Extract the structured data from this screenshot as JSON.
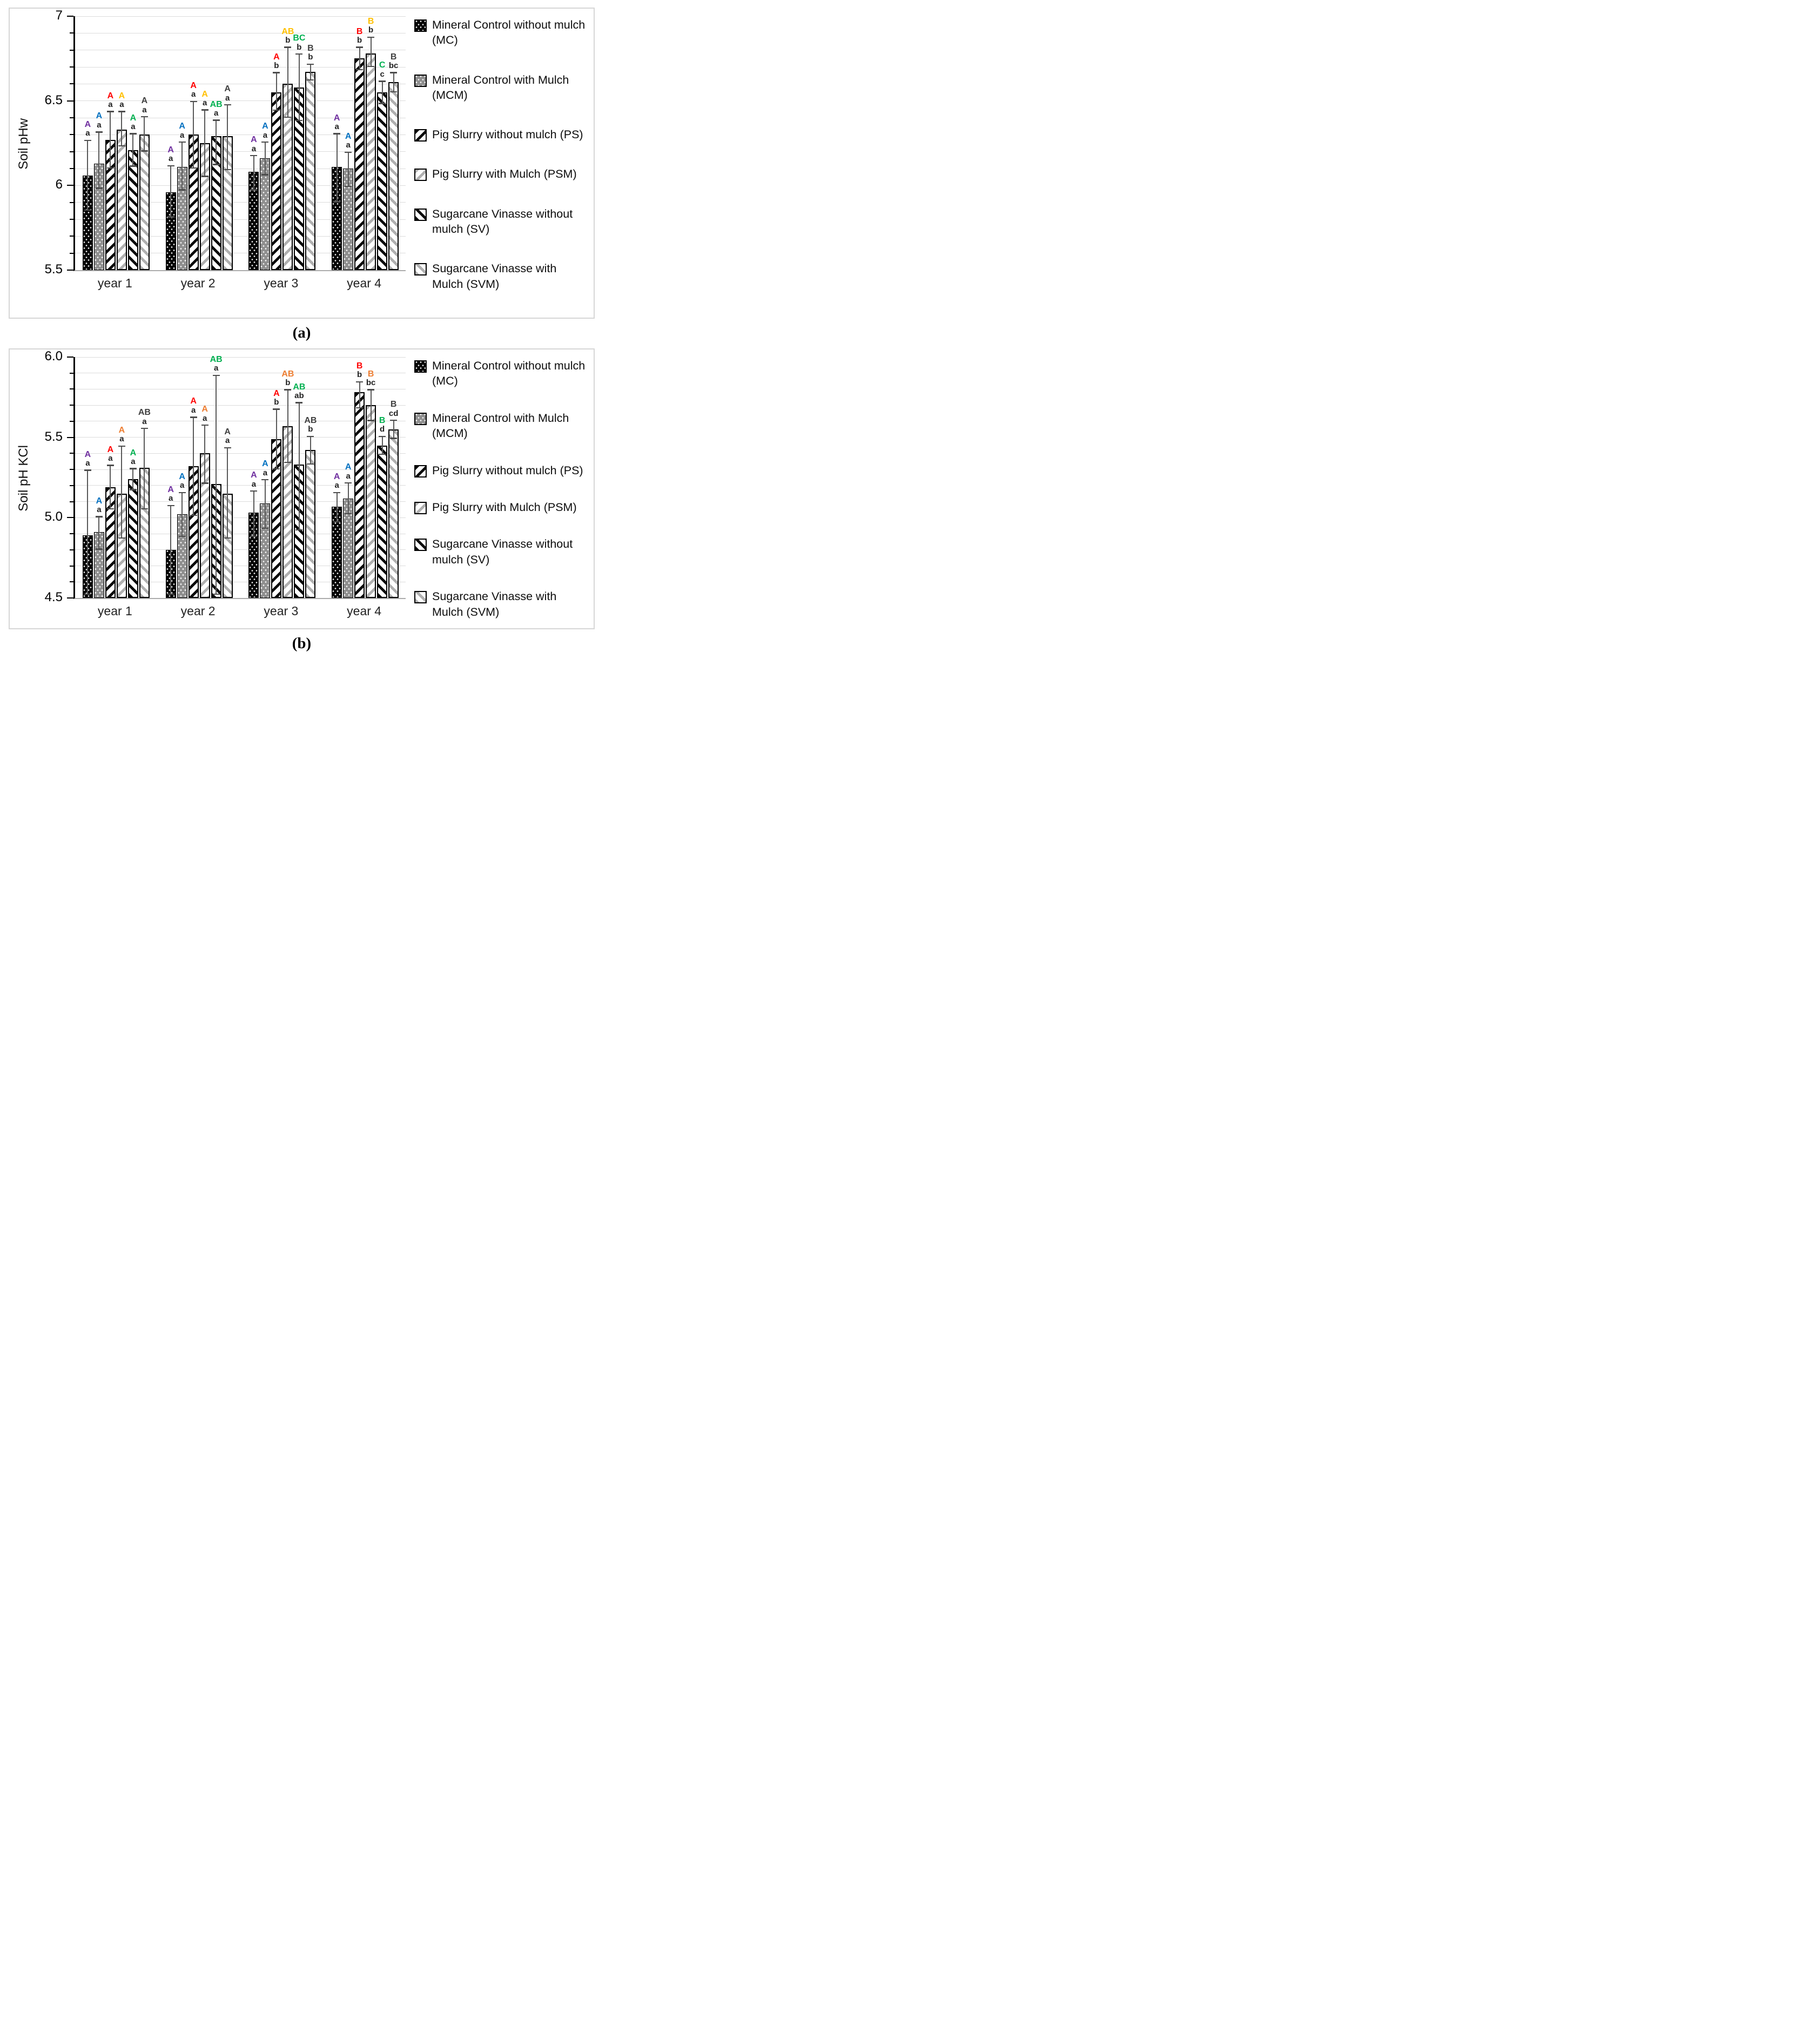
{
  "colors": {
    "grid": "#dcdcdc",
    "axis": "#000000",
    "error_bar": "#595959",
    "purple": "#7030A0",
    "blue": "#0070C0",
    "red": "#FF0000",
    "yellow": "#FFC000",
    "orange": "#ED7D31",
    "green": "#00B050",
    "black_letter": "#404040"
  },
  "legend": {
    "items": [
      {
        "pattern": "pat-mc",
        "icon": "dotted-black-swatch-icon",
        "label": "Mineral Control without mulch (MC)"
      },
      {
        "pattern": "pat-mcm",
        "icon": "dotted-gray-swatch-icon",
        "label": "Mineral Control with Mulch (MCM)"
      },
      {
        "pattern": "pat-ps",
        "icon": "diagonal-up-black-swatch-icon",
        "label": "Pig Slurry without mulch (PS)"
      },
      {
        "pattern": "pat-psm",
        "icon": "diagonal-up-gray-swatch-icon",
        "label": "Pig Slurry with Mulch (PSM)"
      },
      {
        "pattern": "pat-sv",
        "icon": "diagonal-down-black-swatch-icon",
        "label": "Sugarcane Vinasse without mulch (SV)"
      },
      {
        "pattern": "pat-svm",
        "icon": "diagonal-down-gray-swatch-icon",
        "label": "Sugarcane Vinasse with Mulch (SVM)"
      }
    ]
  },
  "chart_data": [
    {
      "id": "a",
      "type": "bar",
      "caption": "(a)",
      "ylabel": "Soil pHw",
      "ylim": [
        5.5,
        7.0
      ],
      "grid_step": 0.1,
      "legend_position": "right",
      "yticks": [
        {
          "v": 7,
          "label": "7"
        },
        {
          "v": 6.5,
          "label": "6.5"
        },
        {
          "v": 6,
          "label": "6"
        },
        {
          "v": 5.5,
          "label": "5.5"
        }
      ],
      "categories": [
        "year 1",
        "year 2",
        "year 3",
        "year 4"
      ],
      "series": [
        {
          "key": "MC",
          "name": "Mineral Control without mulch (MC)",
          "pattern": "pat-mc",
          "thick": false,
          "letter_color": "#7030A0",
          "values": [
            6.06,
            5.96,
            6.08,
            6.11
          ],
          "err_lo": [
            5.85,
            5.81,
            5.97,
            5.9
          ],
          "err_hi": [
            6.27,
            6.12,
            6.18,
            6.31
          ],
          "upper": [
            "A",
            "A",
            "A",
            "A"
          ],
          "lower": [
            "a",
            "a",
            "a",
            "a"
          ]
        },
        {
          "key": "MCM",
          "name": "Mineral Control with Mulch (MCM)",
          "pattern": "pat-mcm",
          "thick": false,
          "letter_color": "#0070C0",
          "values": [
            6.13,
            6.11,
            6.16,
            6.1
          ],
          "err_lo": [
            5.98,
            5.97,
            6.06,
            5.99
          ],
          "err_hi": [
            6.32,
            6.26,
            6.26,
            6.2
          ],
          "upper": [
            "A",
            "A",
            "A",
            "A"
          ],
          "lower": [
            "a",
            "a",
            "a",
            "a"
          ]
        },
        {
          "key": "PS",
          "name": "Pig Slurry without mulch (PS)",
          "pattern": "pat-ps",
          "thick": true,
          "letter_color": "#FF0000",
          "values": [
            6.27,
            6.3,
            6.55,
            6.75
          ],
          "err_lo": [
            6.1,
            6.1,
            6.44,
            6.68
          ],
          "err_hi": [
            6.44,
            6.5,
            6.67,
            6.82
          ],
          "upper": [
            "A",
            "A",
            "A",
            "B"
          ],
          "lower": [
            "a",
            "a",
            "b",
            "b"
          ]
        },
        {
          "key": "PSM",
          "name": "Pig Slurry with Mulch (PSM)",
          "pattern": "pat-psm",
          "thick": true,
          "letter_color": "#FFC000",
          "values": [
            6.33,
            6.25,
            6.6,
            6.78
          ],
          "err_lo": [
            6.23,
            6.05,
            6.4,
            6.7
          ],
          "err_hi": [
            6.44,
            6.45,
            6.82,
            6.88
          ],
          "upper": [
            "A",
            "A",
            "AB",
            "B"
          ],
          "lower": [
            "a",
            "a",
            "b",
            "b"
          ]
        },
        {
          "key": "SV",
          "name": "Sugarcane Vinasse without mulch (SV)",
          "pattern": "pat-sv",
          "thick": true,
          "letter_color": "#00B050",
          "values": [
            6.21,
            6.29,
            6.58,
            6.55
          ],
          "err_lo": [
            6.11,
            6.12,
            6.38,
            6.48
          ],
          "err_hi": [
            6.31,
            6.39,
            6.78,
            6.62
          ],
          "upper": [
            "A",
            "AB",
            "BC",
            "C"
          ],
          "lower": [
            "a",
            "a",
            "b",
            "c"
          ]
        },
        {
          "key": "SVM",
          "name": "Sugarcane Vinasse with Mulch (SVM)",
          "pattern": "pat-svm",
          "thick": true,
          "letter_color": "#404040",
          "values": [
            6.3,
            6.29,
            6.67,
            6.61
          ],
          "err_lo": [
            6.2,
            6.09,
            6.62,
            6.55
          ],
          "err_hi": [
            6.41,
            6.48,
            6.72,
            6.67
          ],
          "upper": [
            "A",
            "A",
            "B",
            "B"
          ],
          "lower": [
            "a",
            "a",
            "b",
            "bc"
          ]
        }
      ]
    },
    {
      "id": "b",
      "type": "bar",
      "caption": "(b)",
      "ylabel": "Soil pH KCl",
      "ylim": [
        4.5,
        6.0
      ],
      "grid_step": 0.1,
      "legend_position": "right",
      "yticks": [
        {
          "v": 6,
          "label": "6.0"
        },
        {
          "v": 5.5,
          "label": "5.5"
        },
        {
          "v": 5,
          "label": "5.0"
        },
        {
          "v": 4.5,
          "label": "4.5"
        }
      ],
      "categories": [
        "year 1",
        "year 2",
        "year 3",
        "year 4"
      ],
      "series": [
        {
          "key": "MC",
          "name": "Mineral Control without mulch (MC)",
          "pattern": "pat-mc",
          "thick": false,
          "letter_color": "#7030A0",
          "values": [
            4.89,
            4.8,
            5.03,
            5.07
          ],
          "err_lo": [
            4.52,
            4.52,
            4.88,
            4.97
          ],
          "err_hi": [
            5.3,
            5.08,
            5.17,
            5.16
          ],
          "upper": [
            "A",
            "A",
            "A",
            "A"
          ],
          "lower": [
            "a",
            "a",
            "a",
            "a"
          ]
        },
        {
          "key": "MCM",
          "name": "Mineral Control with Mulch (MCM)",
          "pattern": "pat-mcm",
          "thick": false,
          "letter_color": "#0070C0",
          "values": [
            4.91,
            5.02,
            5.09,
            5.12
          ],
          "err_lo": [
            4.8,
            4.88,
            4.93,
            5.02
          ],
          "err_hi": [
            5.01,
            5.16,
            5.24,
            5.22
          ],
          "upper": [
            "A",
            "A",
            "A",
            "A"
          ],
          "lower": [
            "a",
            "a",
            "a",
            "a"
          ]
        },
        {
          "key": "PS",
          "name": "Pig Slurry without mulch (PS)",
          "pattern": "pat-ps",
          "thick": true,
          "letter_color": "#FF0000",
          "values": [
            5.19,
            5.32,
            5.49,
            5.78
          ],
          "err_lo": [
            5.05,
            5.01,
            5.3,
            5.68
          ],
          "err_hi": [
            5.33,
            5.63,
            5.68,
            5.85
          ],
          "upper": [
            "A",
            "A",
            "A",
            "B"
          ],
          "lower": [
            "a",
            "a",
            "b",
            "b"
          ]
        },
        {
          "key": "PSM",
          "name": "Pig Slurry with Mulch (PSM)",
          "pattern": "pat-psm",
          "thick": true,
          "letter_color": "#ED7D31",
          "values": [
            5.15,
            5.4,
            5.57,
            5.7
          ],
          "err_lo": [
            4.87,
            5.21,
            5.34,
            5.6
          ],
          "err_hi": [
            5.45,
            5.58,
            5.8,
            5.8
          ],
          "upper": [
            "A",
            "A",
            "AB",
            "B"
          ],
          "lower": [
            "a",
            "a",
            "b",
            "bc"
          ]
        },
        {
          "key": "SV",
          "name": "Sugarcane Vinasse without mulch (SV)",
          "pattern": "pat-sv",
          "thick": true,
          "letter_color": "#00B050",
          "values": [
            5.24,
            5.21,
            5.33,
            5.45
          ],
          "err_lo": [
            5.17,
            4.52,
            4.92,
            5.39
          ],
          "err_hi": [
            5.31,
            5.89,
            5.72,
            5.51
          ],
          "upper": [
            "A",
            "AB",
            "AB",
            "B"
          ],
          "lower": [
            "a",
            "a",
            "ab",
            "d"
          ]
        },
        {
          "key": "SVM",
          "name": "Sugarcane Vinasse with Mulch (SVM)",
          "pattern": "pat-svm",
          "thick": true,
          "letter_color": "#404040",
          "values": [
            5.31,
            5.15,
            5.42,
            5.55
          ],
          "err_lo": [
            5.05,
            4.87,
            5.33,
            5.49
          ],
          "err_hi": [
            5.56,
            5.44,
            5.51,
            5.61
          ],
          "upper": [
            "AB",
            "A",
            "AB",
            "B"
          ],
          "lower": [
            "a",
            "a",
            "b",
            "cd"
          ]
        }
      ]
    }
  ]
}
